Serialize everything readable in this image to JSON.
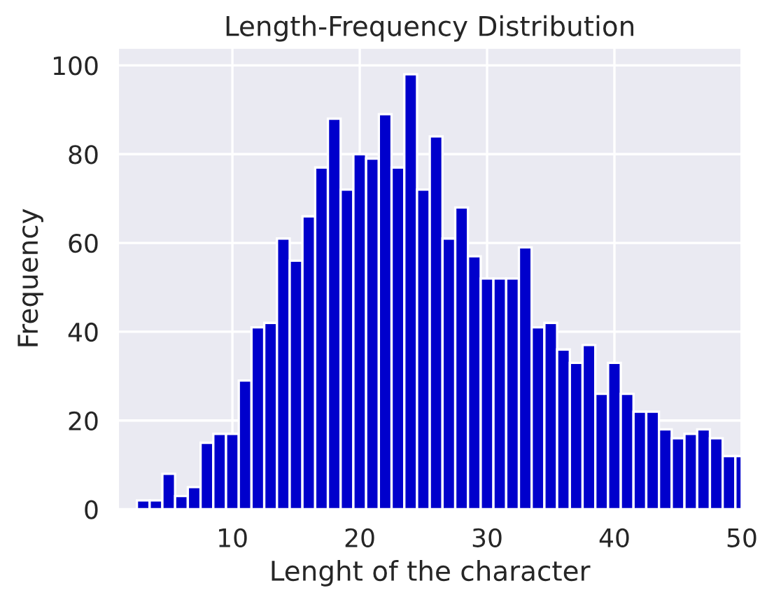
{
  "chart_data": {
    "type": "histogram",
    "title": "Length-Frequency Distribution",
    "xlabel": "Lenght of the character",
    "ylabel": "Frequency",
    "color": "#0000cc",
    "bins": [
      2.5,
      3.5,
      4.5,
      5.5,
      6.5,
      7.5,
      8.5,
      9.5,
      10.5,
      11.5,
      12.5,
      13.5,
      14.5,
      15.5,
      16.5,
      17.5,
      18.5,
      19.5,
      20.5,
      21.5,
      22.5,
      23.5,
      24.5,
      25.5,
      26.5,
      27.5,
      28.5,
      29.5,
      30.5,
      31.5,
      32.5,
      33.5,
      34.5,
      35.5,
      36.5,
      37.5,
      38.5,
      39.5,
      40.5,
      41.5,
      42.5,
      43.5,
      44.5,
      45.5,
      46.5,
      47.5,
      48.5,
      49.5,
      50.5
    ],
    "values": [
      2,
      2,
      8,
      3,
      5,
      15,
      17,
      17,
      29,
      41,
      42,
      61,
      56,
      66,
      77,
      88,
      72,
      80,
      79,
      89,
      77,
      98,
      72,
      84,
      61,
      68,
      57,
      52,
      52,
      52,
      59,
      41,
      42,
      36,
      33,
      37,
      26,
      33,
      26,
      22,
      22,
      18,
      16,
      17,
      18,
      16,
      12,
      12
    ],
    "xlim": [
      1,
      50
    ],
    "xticks": [
      10,
      20,
      30,
      40,
      50
    ],
    "ylim": [
      0,
      104
    ],
    "yticks": [
      0,
      20,
      40,
      60,
      80,
      100
    ],
    "grid": true
  }
}
